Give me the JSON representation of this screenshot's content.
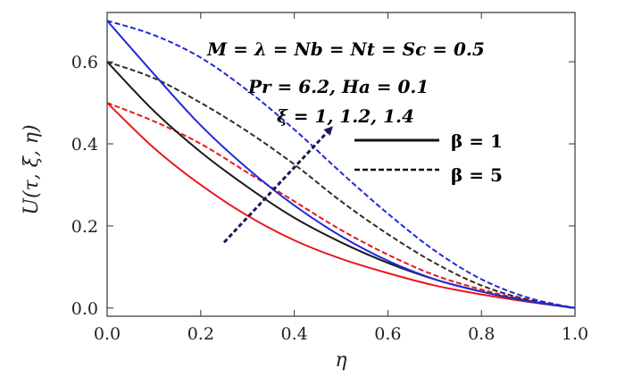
{
  "chart_data": {
    "type": "line",
    "xlabel": "η",
    "ylabel": "U(τ, ξ, η)",
    "xlim": [
      0,
      1
    ],
    "ylim": [
      -0.02,
      0.72
    ],
    "x_ticks": [
      "0.0",
      "0.2",
      "0.4",
      "0.6",
      "0.8",
      "1.0"
    ],
    "y_ticks": [
      "0.0",
      "0.2",
      "0.4",
      "0.6"
    ],
    "annotations": [
      "M = λ = Nb = Nt = Sc = 0.5",
      "Pr = 6.2,  Ha = 0.1",
      "ξ = 1, 1.2, 1.4"
    ],
    "legend": [
      {
        "label": "β = 1",
        "style": "solid"
      },
      {
        "label": "β = 5",
        "style": "dashed"
      }
    ],
    "arrow": {
      "from": [
        0.25,
        0.16
      ],
      "to": [
        0.48,
        0.44
      ]
    },
    "x": [
      0,
      0.1,
      0.2,
      0.3,
      0.4,
      0.5,
      0.6,
      0.7,
      0.8,
      0.9,
      1.0
    ],
    "series": [
      {
        "color": "#e8181e",
        "style": "solid",
        "values": [
          0.5,
          0.39,
          0.3,
          0.225,
          0.165,
          0.12,
          0.085,
          0.055,
          0.033,
          0.015,
          0.0
        ]
      },
      {
        "color": "#e8181e",
        "style": "dashed",
        "values": [
          0.5,
          0.455,
          0.4,
          0.33,
          0.26,
          0.19,
          0.13,
          0.08,
          0.045,
          0.018,
          0.0
        ]
      },
      {
        "color": "#1a1a1a",
        "style": "solid",
        "values": [
          0.6,
          0.48,
          0.38,
          0.295,
          0.22,
          0.16,
          0.11,
          0.07,
          0.04,
          0.017,
          0.0
        ]
      },
      {
        "color": "#3a2a1a",
        "style": "dashed",
        "values": [
          0.6,
          0.56,
          0.5,
          0.43,
          0.35,
          0.26,
          0.18,
          0.11,
          0.055,
          0.02,
          0.0
        ]
      },
      {
        "color": "#1f2bd6",
        "style": "solid",
        "values": [
          0.7,
          0.57,
          0.445,
          0.34,
          0.25,
          0.175,
          0.115,
          0.07,
          0.04,
          0.017,
          0.0
        ]
      },
      {
        "color": "#1f2bd6",
        "style": "dashed",
        "values": [
          0.7,
          0.665,
          0.61,
          0.53,
          0.435,
          0.33,
          0.23,
          0.14,
          0.07,
          0.025,
          0.0
        ]
      }
    ]
  }
}
